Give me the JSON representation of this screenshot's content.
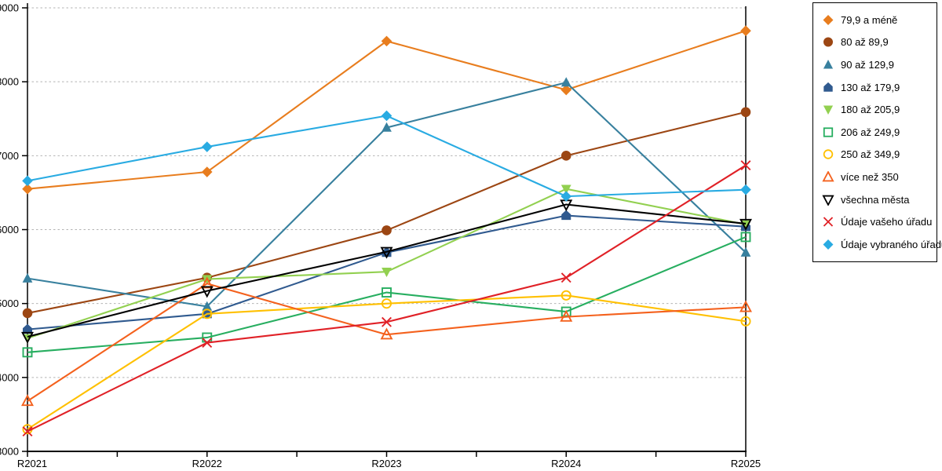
{
  "chart_data": {
    "type": "line",
    "title": "",
    "xlabel": "",
    "ylabel": "",
    "categories": [
      "R2021",
      "R2022",
      "R2023",
      "R2024",
      "R2025"
    ],
    "ylim": [
      3000,
      9000
    ],
    "yticks": [
      3000,
      4000,
      5000,
      6000,
      7000,
      8000,
      9000
    ],
    "grid": "horizontal-dashed",
    "gridline_color": "#b3b3b3",
    "axis_color": "#000000",
    "legend_position": "right",
    "series": [
      {
        "name": "79,9 a méně",
        "color": "#E87D1E",
        "marker": "diamond",
        "values": [
          6550,
          6780,
          8550,
          7890,
          8690
        ]
      },
      {
        "name": "80 až 89,9",
        "color": "#9C4613",
        "marker": "circle",
        "values": [
          4870,
          5350,
          5990,
          7000,
          7590
        ]
      },
      {
        "name": "90 až 129,9",
        "color": "#38809E",
        "marker": "triangle",
        "values": [
          5340,
          4960,
          7380,
          7990,
          5690
        ]
      },
      {
        "name": "130 až 179,9",
        "color": "#305A8F",
        "marker": "pentagon",
        "values": [
          4650,
          4860,
          5690,
          6190,
          6040
        ]
      },
      {
        "name": "180 až 205,9",
        "color": "#92D050",
        "marker": "triangle-down",
        "values": [
          4530,
          5330,
          5430,
          6550,
          6070
        ]
      },
      {
        "name": "206 až 249,9",
        "color": "#27AE60",
        "marker": "square-open",
        "values": [
          4340,
          4540,
          5150,
          4890,
          5900
        ]
      },
      {
        "name": "250 až 349,9",
        "color": "#FFC000",
        "marker": "circle-open",
        "values": [
          3300,
          4860,
          5000,
          5110,
          4760
        ]
      },
      {
        "name": "více než 350",
        "color": "#F4611D",
        "marker": "triangle-open",
        "values": [
          3680,
          5270,
          4580,
          4820,
          4950
        ]
      },
      {
        "name": "všechna města",
        "color": "#000000",
        "marker": "triangle-down-open",
        "values": [
          4550,
          5170,
          5700,
          6340,
          6080
        ]
      },
      {
        "name": "Údaje vašeho úřadu",
        "color": "#E02127",
        "marker": "x",
        "values": [
          3270,
          4470,
          4750,
          5350,
          6870
        ]
      },
      {
        "name": "Údaje vybraného úřadu",
        "color": "#29ABE2",
        "marker": "diamond",
        "values": [
          6660,
          7120,
          7540,
          6450,
          6540
        ]
      }
    ]
  }
}
